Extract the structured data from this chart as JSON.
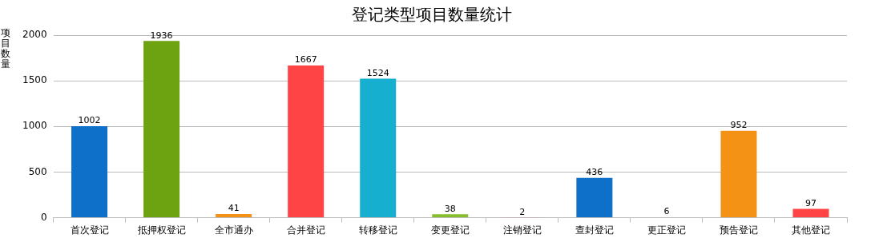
{
  "chart_data": {
    "type": "bar",
    "title": "登记类型项目数量统计",
    "ylabel": "项目数量",
    "categories": [
      "首次登记",
      "抵押权登记",
      "全市通办",
      "合并登记",
      "转移登记",
      "变更登记",
      "注销登记",
      "查封登记",
      "更正登记",
      "预告登记",
      "其他登记"
    ],
    "values": [
      1002,
      1936,
      41,
      1667,
      1524,
      38,
      2,
      436,
      6,
      952,
      97
    ],
    "colors": [
      "#0e70c8",
      "#6da210",
      "#f39214",
      "#fe4444",
      "#16afd0",
      "#86bf2b",
      "#e86f9a",
      "#0e70c8",
      "#86bf2b",
      "#f39214",
      "#fe4444"
    ],
    "ylim": [
      0,
      2000
    ],
    "yticks": [
      0,
      500,
      1000,
      1500,
      2000
    ],
    "grid": "y",
    "legend": false,
    "data_labels": true
  }
}
